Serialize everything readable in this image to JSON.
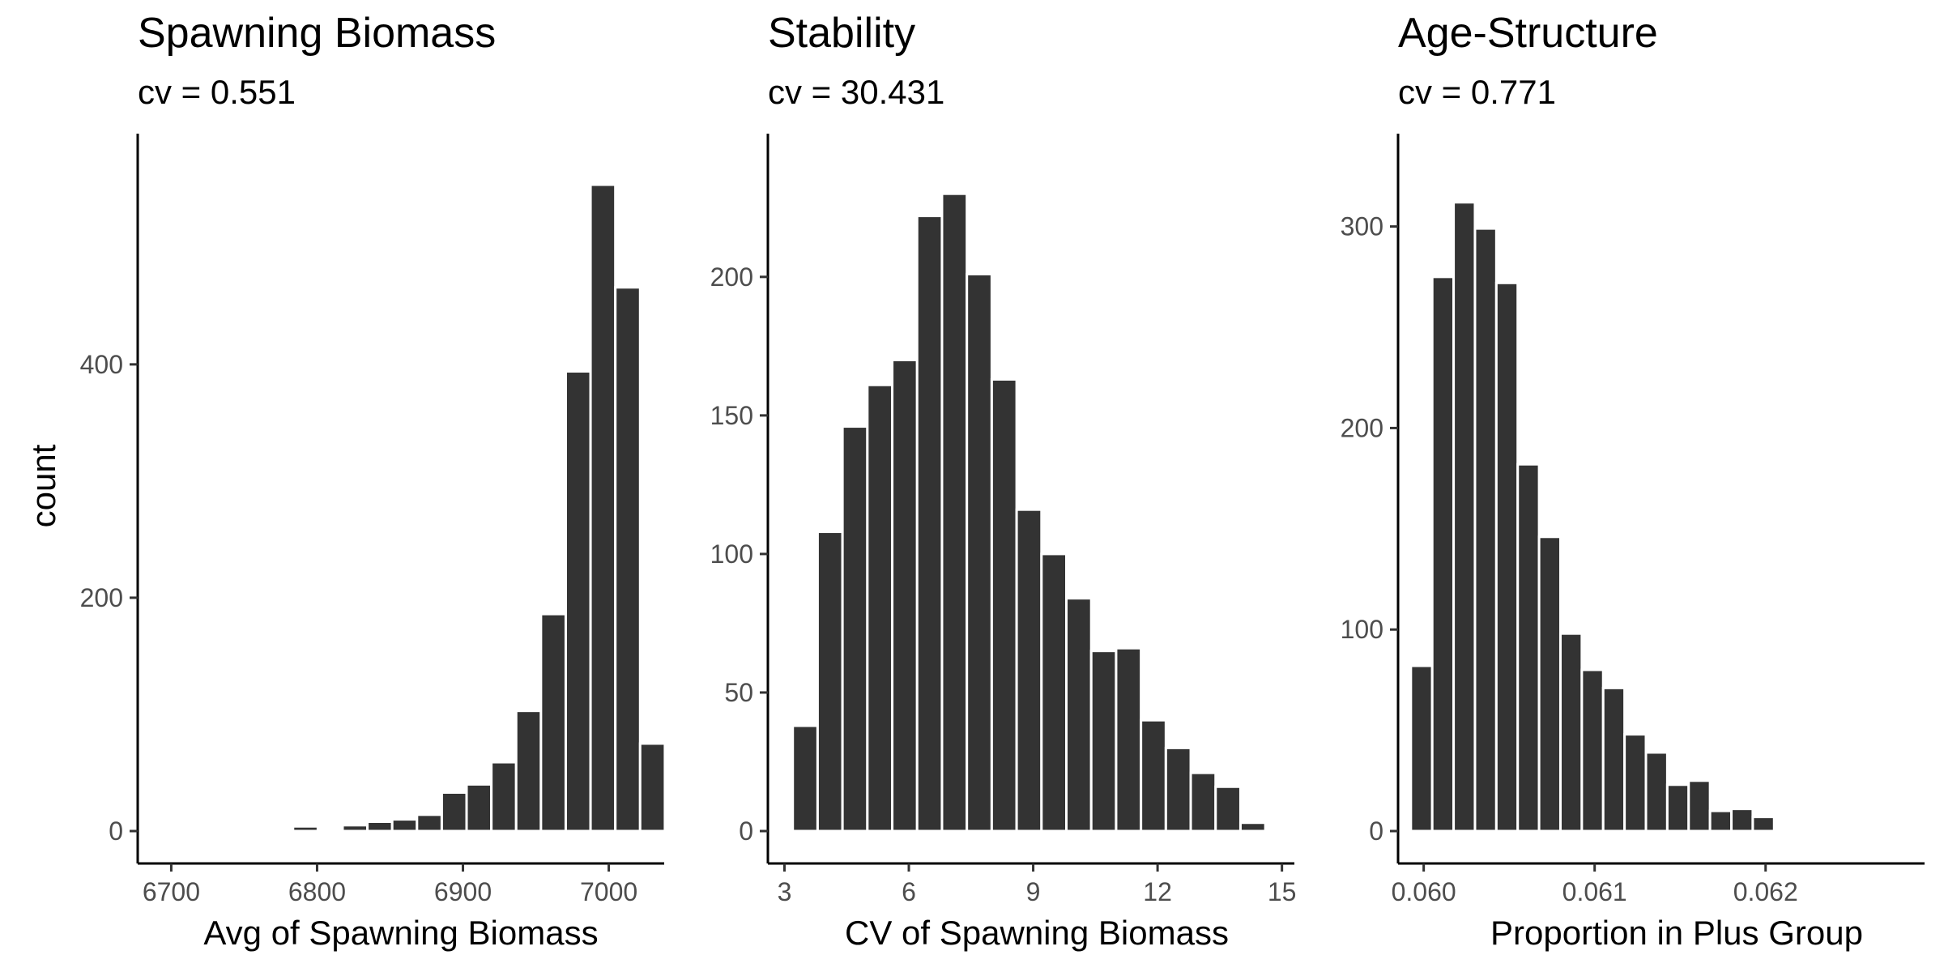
{
  "figure": {
    "shared_ylabel": "count"
  },
  "chart_data": [
    {
      "type": "bar",
      "title": "Spawning Biomass",
      "subtitle": "cv = 0.551",
      "xlabel": "Avg of Spawning Biomass",
      "ylabel": "count",
      "bar_color": "#333333",
      "xlim": [
        6677,
        7038
      ],
      "ylim": [
        0,
        570
      ],
      "xticks": [
        6700,
        6800,
        6900,
        7000
      ],
      "yticks": [
        0,
        200,
        400
      ],
      "bin_width": 17,
      "bars": [
        {
          "x": 6775,
          "count": 2
        },
        {
          "x": 6792,
          "count": 4
        },
        {
          "x": 6826,
          "count": 5
        },
        {
          "x": 6843,
          "count": 8
        },
        {
          "x": 6860,
          "count": 10
        },
        {
          "x": 6877,
          "count": 14
        },
        {
          "x": 6894,
          "count": 33
        },
        {
          "x": 6911,
          "count": 40
        },
        {
          "x": 6928,
          "count": 59
        },
        {
          "x": 6945,
          "count": 103
        },
        {
          "x": 6962,
          "count": 186
        },
        {
          "x": 6979,
          "count": 394
        },
        {
          "x": 6996,
          "count": 554
        },
        {
          "x": 7013,
          "count": 466
        },
        {
          "x": 7030,
          "count": 75
        }
      ]
    },
    {
      "type": "bar",
      "title": "Stability",
      "subtitle": "cv = 30.431",
      "xlabel": "CV of Spawning Biomass",
      "ylabel": "",
      "bar_color": "#333333",
      "xlim": [
        2.6,
        15.3
      ],
      "ylim": [
        0,
        240
      ],
      "xticks": [
        3,
        6,
        9,
        12,
        15
      ],
      "yticks": [
        0,
        50,
        100,
        150,
        200
      ],
      "bin_width": 0.6,
      "bars": [
        {
          "x": 3.5,
          "count": 38
        },
        {
          "x": 4.1,
          "count": 108
        },
        {
          "x": 4.7,
          "count": 146
        },
        {
          "x": 5.3,
          "count": 161
        },
        {
          "x": 5.9,
          "count": 170
        },
        {
          "x": 6.5,
          "count": 222
        },
        {
          "x": 7.1,
          "count": 230
        },
        {
          "x": 7.7,
          "count": 201
        },
        {
          "x": 8.3,
          "count": 163
        },
        {
          "x": 8.9,
          "count": 116
        },
        {
          "x": 9.5,
          "count": 100
        },
        {
          "x": 10.1,
          "count": 84
        },
        {
          "x": 10.7,
          "count": 65
        },
        {
          "x": 11.3,
          "count": 66
        },
        {
          "x": 11.9,
          "count": 40
        },
        {
          "x": 12.5,
          "count": 30
        },
        {
          "x": 13.1,
          "count": 21
        },
        {
          "x": 13.7,
          "count": 16
        },
        {
          "x": 14.3,
          "count": 3
        }
      ]
    },
    {
      "type": "bar",
      "title": "Age-Structure",
      "subtitle": "cv = 0.771",
      "xlabel": "Proportion in Plus Group",
      "ylabel": "",
      "bar_color": "#333333",
      "xlim": [
        0.05985,
        0.06293
      ],
      "ylim": [
        0,
        330
      ],
      "xticks": [
        0.06,
        0.061,
        0.062
      ],
      "xtick_labels": [
        "0.060",
        "0.061",
        "0.062"
      ],
      "yticks": [
        0,
        100,
        200,
        300
      ],
      "bin_width": 0.000125,
      "bars": [
        {
          "x": 0.0599875,
          "count": 82
        },
        {
          "x": 0.0601125,
          "count": 275
        },
        {
          "x": 0.0602375,
          "count": 312
        },
        {
          "x": 0.0603625,
          "count": 299
        },
        {
          "x": 0.0604875,
          "count": 272
        },
        {
          "x": 0.0606125,
          "count": 182
        },
        {
          "x": 0.0607375,
          "count": 146
        },
        {
          "x": 0.0608625,
          "count": 98
        },
        {
          "x": 0.0609875,
          "count": 80
        },
        {
          "x": 0.0611125,
          "count": 71
        },
        {
          "x": 0.0612375,
          "count": 48
        },
        {
          "x": 0.0613625,
          "count": 39
        },
        {
          "x": 0.0614875,
          "count": 23
        },
        {
          "x": 0.0616125,
          "count": 25
        },
        {
          "x": 0.0617375,
          "count": 10
        },
        {
          "x": 0.0618625,
          "count": 11
        },
        {
          "x": 0.0619875,
          "count": 7
        }
      ]
    }
  ]
}
